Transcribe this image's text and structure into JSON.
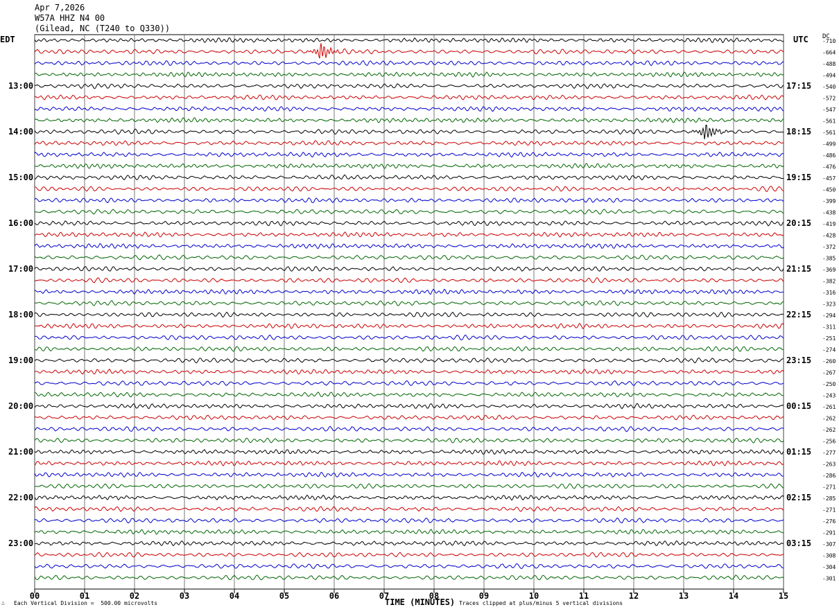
{
  "header": {
    "date": "Apr 7,2026",
    "station": "W57A HHZ N4 00",
    "location": "(Gilead, NC (T240 to Q330))"
  },
  "chart_data": {
    "type": "line",
    "title": "Apr 7,2026",
    "left_axis_label": "EDT",
    "right_axis_label": "UTC",
    "dc_label": "DC",
    "xlabel": "TIME (MINUTES)",
    "xlim": [
      0,
      15
    ],
    "x_ticks": [
      "00",
      "01",
      "02",
      "03",
      "04",
      "05",
      "06",
      "07",
      "08",
      "09",
      "10",
      "11",
      "12",
      "13",
      "14",
      "15"
    ],
    "edt_hour_labels": [
      "13:00",
      "14:00",
      "15:00",
      "16:00",
      "17:00",
      "18:00",
      "19:00",
      "20:00",
      "21:00",
      "22:00",
      "23:00"
    ],
    "utc_hour_labels": [
      "17:15",
      "18:15",
      "19:15",
      "20:15",
      "21:15",
      "22:15",
      "23:15",
      "00:15",
      "01:15",
      "02:15",
      "03:15"
    ],
    "trace_colors": [
      "#000000",
      "#cc0000",
      "#0000cc",
      "#006600"
    ],
    "dc_offsets": [
      -710,
      -664,
      -488,
      -494,
      -540,
      -572,
      -547,
      -561,
      -561,
      -499,
      -486,
      -476,
      -457,
      -450,
      -399,
      -438,
      -419,
      -428,
      -372,
      -385,
      -369,
      -382,
      -316,
      -323,
      -294,
      -311,
      -251,
      -274,
      -260,
      -267,
      -250,
      -243,
      -261,
      -262,
      -262,
      -256,
      -277,
      -263,
      -286,
      -271,
      -285,
      -271,
      -276,
      -291,
      -307,
      -308,
      -304,
      -301
    ],
    "events": [
      {
        "row": 1,
        "minute": 5.7,
        "color": "#cc0000"
      },
      {
        "row": 8,
        "minute": 13.4,
        "color": "#000000"
      }
    ],
    "grid": true
  },
  "footer": {
    "mark": "∴",
    "scale": "Each Vertical Division =  500.00 microvolts",
    "clip": "Traces clipped at plus/minus 5 vertical divisions"
  }
}
